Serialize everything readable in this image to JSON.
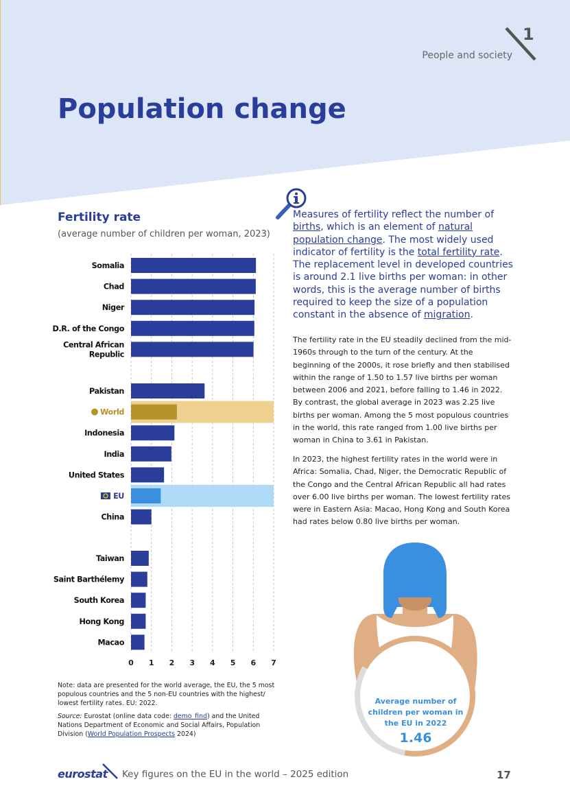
{
  "header": {
    "chapter_number": "1",
    "section_label": "People and society",
    "page_title": "Population change"
  },
  "chart": {
    "title": "Fertility rate",
    "subtitle": "(average number of children per woman, 2023)"
  },
  "chart_data": {
    "type": "bar",
    "orientation": "horizontal",
    "title": "Fertility rate",
    "subtitle": "(average number of children per woman, 2023)",
    "xlim": [
      0,
      7
    ],
    "xticks": [
      "0",
      "1",
      "2",
      "3",
      "4",
      "5",
      "6",
      "7"
    ],
    "colors": {
      "default": "#2a3d9a",
      "world": "#b5912a",
      "world_band": "#efd08e",
      "eu": "#3a8fe0",
      "eu_band": "#aedaf6"
    },
    "bars": [
      {
        "label": "Somalia",
        "value": 6.13,
        "group": 0,
        "kind": "country"
      },
      {
        "label": "Chad",
        "value": 6.12,
        "group": 0,
        "kind": "country"
      },
      {
        "label": "Niger",
        "value": 6.06,
        "group": 0,
        "kind": "country"
      },
      {
        "label": "D.R. of the Congo",
        "value": 6.05,
        "group": 0,
        "kind": "country"
      },
      {
        "label": "Central African Republic",
        "value": 6.01,
        "group": 0,
        "kind": "country"
      },
      {
        "label": "Pakistan",
        "value": 3.61,
        "group": 1,
        "kind": "country"
      },
      {
        "label": "World",
        "value": 2.25,
        "group": 1,
        "kind": "world"
      },
      {
        "label": "Indonesia",
        "value": 2.13,
        "group": 1,
        "kind": "country"
      },
      {
        "label": "India",
        "value": 1.98,
        "group": 1,
        "kind": "country"
      },
      {
        "label": "United States",
        "value": 1.62,
        "group": 1,
        "kind": "country"
      },
      {
        "label": "EU",
        "value": 1.46,
        "group": 1,
        "kind": "eu"
      },
      {
        "label": "China",
        "value": 1.0,
        "group": 1,
        "kind": "country"
      },
      {
        "label": "Taiwan",
        "value": 0.87,
        "group": 2,
        "kind": "country"
      },
      {
        "label": "Saint Barthélemy",
        "value": 0.8,
        "group": 2,
        "kind": "country"
      },
      {
        "label": "South Korea",
        "value": 0.72,
        "group": 2,
        "kind": "country"
      },
      {
        "label": "Hong Kong",
        "value": 0.72,
        "group": 2,
        "kind": "country"
      },
      {
        "label": "Macao",
        "value": 0.66,
        "group": 2,
        "kind": "country"
      }
    ]
  },
  "note": {
    "text": "Note: data are presented for the world average, the EU, the 5 most populous countries and the 5 non-EU countries with the highest/ lowest fertility rates. EU: 2022."
  },
  "source": {
    "lead": "Source:",
    "part1": " Eurostat (online data code: ",
    "link1": "demo_find",
    "part2": ") and the United Nations Department of Economic and Social Affairs, Population Division (",
    "link2": "World Population Prospects",
    "part3": " 2024)"
  },
  "info_box": {
    "t1": "Measures of fertility reflect the number of ",
    "k1": "births",
    "t2": ", which is an element of ",
    "k2": "natural population change",
    "t3": ". The most widely used indicator of fertility is the ",
    "k3": "total fertility rate",
    "t4": ". The replacement level in developed countries is around 2.1 live births per woman: in other words, this is the average number of births required to keep the size of a population constant in the absence of ",
    "k4": "migration",
    "t5": "."
  },
  "paragraphs": {
    "p1": "The fertility rate in the EU steadily declined from the mid-1960s through to the turn of the century. At the beginning of the 2000s, it rose briefly and then stabilised within the range of 1.50 to 1.57 live births per woman between 2006 and 2021, before falling to 1.46 in 2022. By contrast, the global average in 2023 was 2.25 live births per woman. Among the 5 most populous countries in the world, this rate ranged from 1.00 live births per woman in China to 3.61 in Pakistan.",
    "p2": "In 2023, the highest fertility rates in the world were in Africa: Somalia, Chad, Niger, the Democratic Republic of the Congo and the Central African Republic all had rates over 6.00 live births per woman. The lowest fertility rates were in Eastern Asia: Macao, Hong Kong and South Korea had rates below 0.80 live births per woman."
  },
  "infographic": {
    "label": "Average number of children per woman in the EU in 2022",
    "value": "1.46",
    "progress_value": 1.46,
    "progress_max": 2.1,
    "colors": {
      "hair": "#3a8fe0",
      "skin": "#dfae85",
      "ring": "#dddddd"
    }
  },
  "footer": {
    "logo": "eurostat",
    "publication": "Key figures on the EU in the world – 2025 edition",
    "page_number": "17"
  },
  "icons": [
    "info-magnifier-icon",
    "eu-flag-icon",
    "world-dot-icon",
    "chapter-slash-icon"
  ]
}
